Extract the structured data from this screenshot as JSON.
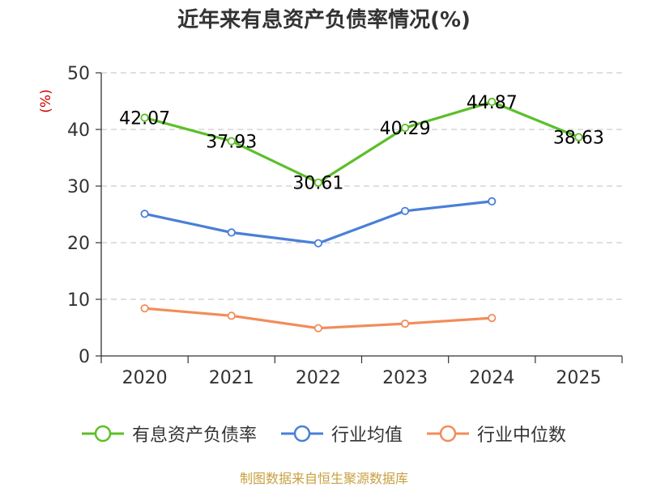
{
  "colors": {
    "title": "#333333",
    "axis": "#333333",
    "grid": "#cccccc",
    "unit": "#cc0000",
    "source": "#c8a040"
  },
  "chart_data": {
    "type": "line",
    "title": "近年来有息资产负债率情况(%)",
    "ylabel": "(%)",
    "xlabel": "",
    "categories": [
      "2020",
      "2021",
      "2022",
      "2023",
      "2024",
      "2025"
    ],
    "ylim": [
      0,
      50
    ],
    "yticks": [
      0,
      10,
      20,
      30,
      40,
      50
    ],
    "grid": true,
    "legend_position": "bottom",
    "series": [
      {
        "name": "有息资产负债率",
        "color": "#5cbf2a",
        "values": [
          42.07,
          37.93,
          30.61,
          40.29,
          44.87,
          38.63
        ],
        "data_labels": [
          "42.07",
          "37.93",
          "30.61",
          "40.29",
          "44.87",
          "38.63"
        ]
      },
      {
        "name": "行业均值",
        "color": "#4a7fd6",
        "values": [
          25.1,
          21.8,
          19.9,
          25.6,
          27.3,
          null
        ]
      },
      {
        "name": "行业中位数",
        "color": "#f28c5a",
        "values": [
          8.4,
          7.1,
          4.9,
          5.7,
          6.7,
          null
        ]
      }
    ]
  },
  "source_text": "制图数据来自恒生聚源数据库"
}
